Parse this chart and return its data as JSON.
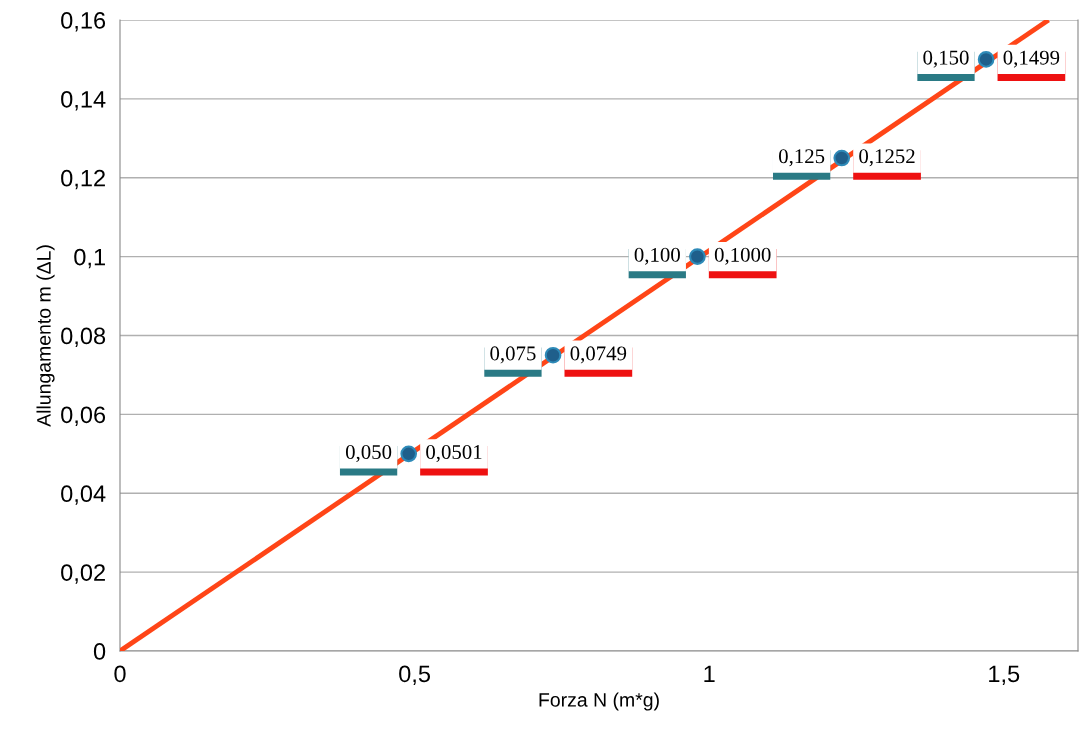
{
  "chart_data": {
    "type": "scatter",
    "xlabel": "Forza N (m*g)",
    "ylabel": "Allungamento m (ΔL)",
    "x": [
      0.49,
      0.735,
      0.98,
      1.225,
      1.47
    ],
    "series": [
      {
        "marker": "circle",
        "color": "#1f5f8b",
        "values": [
          0.05,
          0.075,
          0.1,
          0.125,
          0.15
        ],
        "value_labels": [
          "0,050",
          "0,075",
          "0,100",
          "0,125",
          "0,150"
        ]
      },
      {
        "type": "line",
        "color": "#ff4517",
        "x": [
          0,
          1.576
        ],
        "values": [
          0,
          0.16
        ]
      }
    ],
    "annotations": [
      {
        "text": "0,0501",
        "x": 0.49,
        "y": 0.05
      },
      {
        "text": "0,0749",
        "x": 0.735,
        "y": 0.075
      },
      {
        "text": "0,1000",
        "x": 0.98,
        "y": 0.1
      },
      {
        "text": "0,1252",
        "x": 1.225,
        "y": 0.125
      },
      {
        "text": "0,1499",
        "x": 1.47,
        "y": 0.15
      }
    ],
    "xlim": [
      0,
      1.626
    ],
    "ylim": [
      0,
      0.16
    ],
    "xticks": [
      {
        "value": 0,
        "label": "0"
      },
      {
        "value": 0.5,
        "label": "0,5"
      },
      {
        "value": 1,
        "label": "1"
      },
      {
        "value": 1.5,
        "label": "1,5"
      }
    ],
    "yticks": [
      {
        "value": 0,
        "label": "0"
      },
      {
        "value": 0.02,
        "label": "0,02"
      },
      {
        "value": 0.04,
        "label": "0,04"
      },
      {
        "value": 0.06,
        "label": "0,06"
      },
      {
        "value": 0.08,
        "label": "0,08"
      },
      {
        "value": 0.1,
        "label": "0,1"
      },
      {
        "value": 0.12,
        "label": "0,12"
      },
      {
        "value": 0.14,
        "label": "0,14"
      },
      {
        "value": 0.16,
        "label": "0,16"
      }
    ],
    "grid": "y",
    "legend": false
  }
}
